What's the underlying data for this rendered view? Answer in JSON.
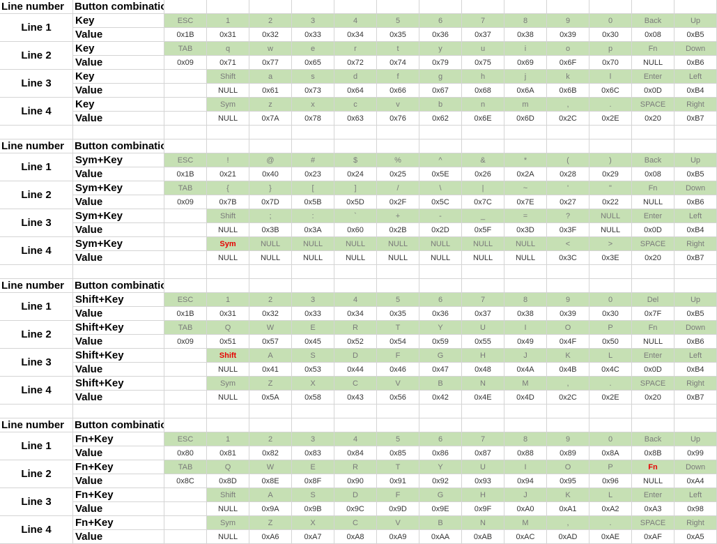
{
  "headers": {
    "line_number": "Line number",
    "button_combination": "Button combination"
  },
  "sections": [
    {
      "key_label": "Key",
      "value_label": "Value",
      "lines": [
        {
          "name": "Line 1",
          "keys": [
            "ESC",
            "1",
            "2",
            "3",
            "4",
            "5",
            "6",
            "7",
            "8",
            "9",
            "0",
            "Back",
            "Up"
          ],
          "values": [
            "0x1B",
            "0x31",
            "0x32",
            "0x33",
            "0x34",
            "0x35",
            "0x36",
            "0x37",
            "0x38",
            "0x39",
            "0x30",
            "0x08",
            "0xB5"
          ]
        },
        {
          "name": "Line 2",
          "keys": [
            "TAB",
            "q",
            "w",
            "e",
            "r",
            "t",
            "y",
            "u",
            "i",
            "o",
            "p",
            "Fn",
            "Down"
          ],
          "values": [
            "0x09",
            "0x71",
            "0x77",
            "0x65",
            "0x72",
            "0x74",
            "0x79",
            "0x75",
            "0x69",
            "0x6F",
            "0x70",
            "NULL",
            "0xB6"
          ]
        },
        {
          "name": "Line 3",
          "keys": [
            "",
            "Shift",
            "a",
            "s",
            "d",
            "f",
            "g",
            "h",
            "j",
            "k",
            "l",
            "Enter",
            "Left"
          ],
          "values": [
            "",
            "NULL",
            "0x61",
            "0x73",
            "0x64",
            "0x66",
            "0x67",
            "0x68",
            "0x6A",
            "0x6B",
            "0x6C",
            "0x0D",
            "0xB4"
          ]
        },
        {
          "name": "Line 4",
          "keys": [
            "",
            "Sym",
            "z",
            "x",
            "c",
            "v",
            "b",
            "n",
            "m",
            ",",
            ".",
            "SPACE",
            "Right"
          ],
          "values": [
            "",
            "NULL",
            "0x7A",
            "0x78",
            "0x63",
            "0x76",
            "0x62",
            "0x6E",
            "0x6D",
            "0x2C",
            "0x2E",
            "0x20",
            "0xB7"
          ]
        }
      ]
    },
    {
      "key_label": "Sym+Key",
      "value_label": "Value",
      "lines": [
        {
          "name": "Line 1",
          "keys": [
            "ESC",
            "!",
            "@",
            "#",
            "$",
            "%",
            "^",
            "&",
            "*",
            "(",
            ")",
            "Back",
            "Up"
          ],
          "values": [
            "0x1B",
            "0x21",
            "0x40",
            "0x23",
            "0x24",
            "0x25",
            "0x5E",
            "0x26",
            "0x2A",
            "0x28",
            "0x29",
            "0x08",
            "0xB5"
          ]
        },
        {
          "name": "Line 2",
          "keys": [
            "TAB",
            "{",
            "}",
            "[",
            "]",
            "/",
            "\\",
            "|",
            "~",
            "'",
            "\"",
            "Fn",
            "Down"
          ],
          "values": [
            "0x09",
            "0x7B",
            "0x7D",
            "0x5B",
            "0x5D",
            "0x2F",
            "0x5C",
            "0x7C",
            "0x7E",
            "0x27",
            "0x22",
            "NULL",
            "0xB6"
          ]
        },
        {
          "name": "Line 3",
          "keys": [
            "",
            "Shift",
            ";",
            ":",
            "`",
            "+",
            "-",
            "_",
            "=",
            "?",
            "NULL",
            "Enter",
            "Left"
          ],
          "values": [
            "",
            "NULL",
            "0x3B",
            "0x3A",
            "0x60",
            "0x2B",
            "0x2D",
            "0x5F",
            "0x3D",
            "0x3F",
            "NULL",
            "0x0D",
            "0xB4"
          ]
        },
        {
          "name": "Line 4",
          "keys": [
            "",
            "Sym",
            "NULL",
            "NULL",
            "NULL",
            "NULL",
            "NULL",
            "NULL",
            "NULL",
            "<",
            ">",
            "SPACE",
            "Right"
          ],
          "values": [
            "",
            "NULL",
            "NULL",
            "NULL",
            "NULL",
            "NULL",
            "NULL",
            "NULL",
            "NULL",
            "0x3C",
            "0x3E",
            "0x20",
            "0xB7"
          ],
          "highlight": 1
        }
      ]
    },
    {
      "key_label": "Shift+Key",
      "value_label": "Value",
      "lines": [
        {
          "name": "Line 1",
          "keys": [
            "ESC",
            "1",
            "2",
            "3",
            "4",
            "5",
            "6",
            "7",
            "8",
            "9",
            "0",
            "Del",
            "Up"
          ],
          "values": [
            "0x1B",
            "0x31",
            "0x32",
            "0x33",
            "0x34",
            "0x35",
            "0x36",
            "0x37",
            "0x38",
            "0x39",
            "0x30",
            "0x7F",
            "0xB5"
          ]
        },
        {
          "name": "Line 2",
          "keys": [
            "TAB",
            "Q",
            "W",
            "E",
            "R",
            "T",
            "Y",
            "U",
            "I",
            "O",
            "P",
            "Fn",
            "Down"
          ],
          "values": [
            "0x09",
            "0x51",
            "0x57",
            "0x45",
            "0x52",
            "0x54",
            "0x59",
            "0x55",
            "0x49",
            "0x4F",
            "0x50",
            "NULL",
            "0xB6"
          ]
        },
        {
          "name": "Line 3",
          "keys": [
            "",
            "Shift",
            "A",
            "S",
            "D",
            "F",
            "G",
            "H",
            "J",
            "K",
            "L",
            "Enter",
            "Left"
          ],
          "values": [
            "",
            "NULL",
            "0x41",
            "0x53",
            "0x44",
            "0x46",
            "0x47",
            "0x48",
            "0x4A",
            "0x4B",
            "0x4C",
            "0x0D",
            "0xB4"
          ],
          "highlight": 1
        },
        {
          "name": "Line 4",
          "keys": [
            "",
            "Sym",
            "Z",
            "X",
            "C",
            "V",
            "B",
            "N",
            "M",
            ",",
            ".",
            "SPACE",
            "Right"
          ],
          "values": [
            "",
            "NULL",
            "0x5A",
            "0x58",
            "0x43",
            "0x56",
            "0x42",
            "0x4E",
            "0x4D",
            "0x2C",
            "0x2E",
            "0x20",
            "0xB7"
          ]
        }
      ]
    },
    {
      "key_label": "Fn+Key",
      "value_label": "Value",
      "lines": [
        {
          "name": "Line 1",
          "keys": [
            "ESC",
            "1",
            "2",
            "3",
            "4",
            "5",
            "6",
            "7",
            "8",
            "9",
            "0",
            "Back",
            "Up"
          ],
          "values": [
            "0x80",
            "0x81",
            "0x82",
            "0x83",
            "0x84",
            "0x85",
            "0x86",
            "0x87",
            "0x88",
            "0x89",
            "0x8A",
            "0x8B",
            "0x99"
          ]
        },
        {
          "name": "Line 2",
          "keys": [
            "TAB",
            "Q",
            "W",
            "E",
            "R",
            "T",
            "Y",
            "U",
            "I",
            "O",
            "P",
            "Fn",
            "Down"
          ],
          "values": [
            "0x8C",
            "0x8D",
            "0x8E",
            "0x8F",
            "0x90",
            "0x91",
            "0x92",
            "0x93",
            "0x94",
            "0x95",
            "0x96",
            "NULL",
            "0xA4"
          ],
          "highlight": 11
        },
        {
          "name": "Line 3",
          "keys": [
            "",
            "Shift",
            "A",
            "S",
            "D",
            "F",
            "G",
            "H",
            "J",
            "K",
            "L",
            "Enter",
            "Left"
          ],
          "values": [
            "",
            "NULL",
            "0x9A",
            "0x9B",
            "0x9C",
            "0x9D",
            "0x9E",
            "0x9F",
            "0xA0",
            "0xA1",
            "0xA2",
            "0xA3",
            "0x98"
          ]
        },
        {
          "name": "Line 4",
          "keys": [
            "",
            "Sym",
            "Z",
            "X",
            "C",
            "V",
            "B",
            "N",
            "M",
            ",",
            ".",
            "SPACE",
            "Right"
          ],
          "values": [
            "",
            "NULL",
            "0xA6",
            "0xA7",
            "0xA8",
            "0xA9",
            "0xAA",
            "0xAB",
            "0xAC",
            "0xAD",
            "0xAE",
            "0xAF",
            "0xA5"
          ]
        }
      ]
    }
  ]
}
